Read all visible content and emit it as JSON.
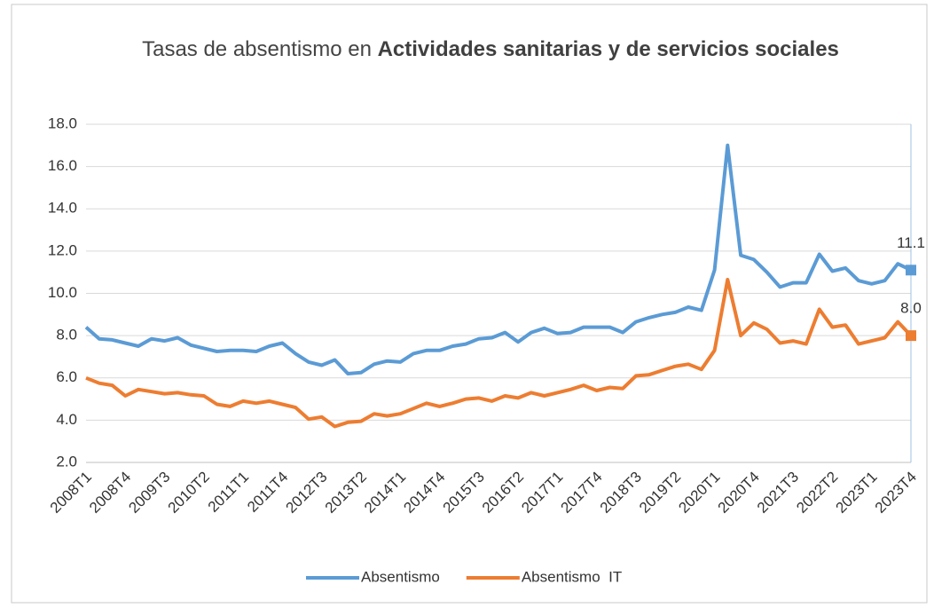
{
  "chart_data": {
    "type": "line",
    "title": {
      "text": "Tasas de absentismo en",
      "emphasis": "Actividades sanitarias y de servicios sociales"
    },
    "categories": [
      "2008T1",
      null,
      null,
      "2008T4",
      null,
      null,
      "2009T3",
      null,
      null,
      "2010T2",
      null,
      null,
      "2011T1",
      null,
      null,
      "2011T4",
      null,
      null,
      "2012T3",
      null,
      null,
      "2013T2",
      null,
      null,
      "2014T1",
      null,
      null,
      "2014T4",
      null,
      null,
      "2015T3",
      null,
      null,
      "2016T2",
      null,
      null,
      "2017T1",
      null,
      null,
      "2017T4",
      null,
      null,
      "2018T3",
      null,
      null,
      "2019T2",
      null,
      null,
      "2020T1",
      null,
      null,
      "2020T4",
      null,
      null,
      "2021T3",
      null,
      null,
      "2022T2",
      null,
      null,
      "2023T1",
      null,
      null,
      "2023T4"
    ],
    "series": [
      {
        "name": "Absentismo",
        "color": "#5b9bd5",
        "values": [
          8.4,
          7.85,
          7.8,
          7.65,
          7.5,
          7.85,
          7.75,
          7.9,
          7.55,
          7.4,
          7.25,
          7.3,
          7.3,
          7.25,
          7.5,
          7.65,
          7.15,
          6.75,
          6.6,
          6.85,
          6.2,
          6.25,
          6.65,
          6.8,
          6.75,
          7.15,
          7.3,
          7.3,
          7.5,
          7.6,
          7.85,
          7.9,
          8.15,
          7.7,
          8.15,
          8.35,
          8.1,
          8.15,
          8.4,
          8.4,
          8.4,
          8.15,
          8.65,
          8.85,
          9.0,
          9.1,
          9.35,
          9.2,
          11.1,
          17.0,
          11.8,
          11.6,
          11.0,
          10.3,
          10.5,
          10.5,
          11.85,
          11.05,
          11.2,
          10.6,
          10.45,
          10.6,
          11.4,
          11.1
        ],
        "value_labels": [
          null,
          null,
          null,
          null,
          null,
          null,
          null,
          null,
          null,
          null,
          null,
          null,
          null,
          null,
          null,
          null,
          null,
          null,
          null,
          null,
          null,
          null,
          null,
          null,
          null,
          null,
          null,
          null,
          null,
          null,
          null,
          null,
          null,
          null,
          null,
          null,
          null,
          null,
          null,
          null,
          null,
          null,
          null,
          null,
          null,
          null,
          null,
          null,
          null,
          null,
          null,
          null,
          null,
          null,
          null,
          null,
          null,
          null,
          null,
          null,
          null,
          null,
          null,
          "11.1"
        ]
      },
      {
        "name": "Absentismo  IT",
        "color": "#ed7d31",
        "values": [
          6.0,
          5.75,
          5.65,
          5.15,
          5.45,
          5.35,
          5.25,
          5.3,
          5.2,
          5.15,
          4.75,
          4.65,
          4.9,
          4.8,
          4.9,
          4.75,
          4.6,
          4.05,
          4.15,
          3.7,
          3.9,
          3.95,
          4.3,
          4.2,
          4.3,
          4.55,
          4.8,
          4.65,
          4.8,
          5.0,
          5.05,
          4.9,
          5.15,
          5.05,
          5.3,
          5.15,
          5.3,
          5.45,
          5.65,
          5.4,
          5.55,
          5.5,
          6.1,
          6.15,
          6.35,
          6.55,
          6.65,
          6.4,
          7.3,
          10.65,
          8.0,
          8.6,
          8.3,
          7.65,
          7.75,
          7.6,
          9.25,
          8.4,
          8.5,
          7.6,
          7.75,
          7.9,
          8.65,
          8.0
        ],
        "value_labels": [
          null,
          null,
          null,
          null,
          null,
          null,
          null,
          null,
          null,
          null,
          null,
          null,
          null,
          null,
          null,
          null,
          null,
          null,
          null,
          null,
          null,
          null,
          null,
          null,
          null,
          null,
          null,
          null,
          null,
          null,
          null,
          null,
          null,
          null,
          null,
          null,
          null,
          null,
          null,
          null,
          null,
          null,
          null,
          null,
          null,
          null,
          null,
          null,
          null,
          null,
          null,
          null,
          null,
          null,
          null,
          null,
          null,
          null,
          null,
          null,
          null,
          null,
          null,
          "8.0"
        ]
      }
    ],
    "ylim": [
      2,
      18
    ],
    "yticks": [
      {
        "value": 2,
        "label": "2.0"
      },
      {
        "value": 4,
        "label": "4.0"
      },
      {
        "value": 6,
        "label": "6.0"
      },
      {
        "value": 8,
        "label": "8.0"
      },
      {
        "value": 10,
        "label": "10.0"
      },
      {
        "value": 12,
        "label": "12.0"
      },
      {
        "value": 14,
        "label": "14.0"
      },
      {
        "value": 16,
        "label": "16.0"
      },
      {
        "value": 18,
        "label": "18.0"
      }
    ],
    "grid": true,
    "legend": "bottom"
  }
}
